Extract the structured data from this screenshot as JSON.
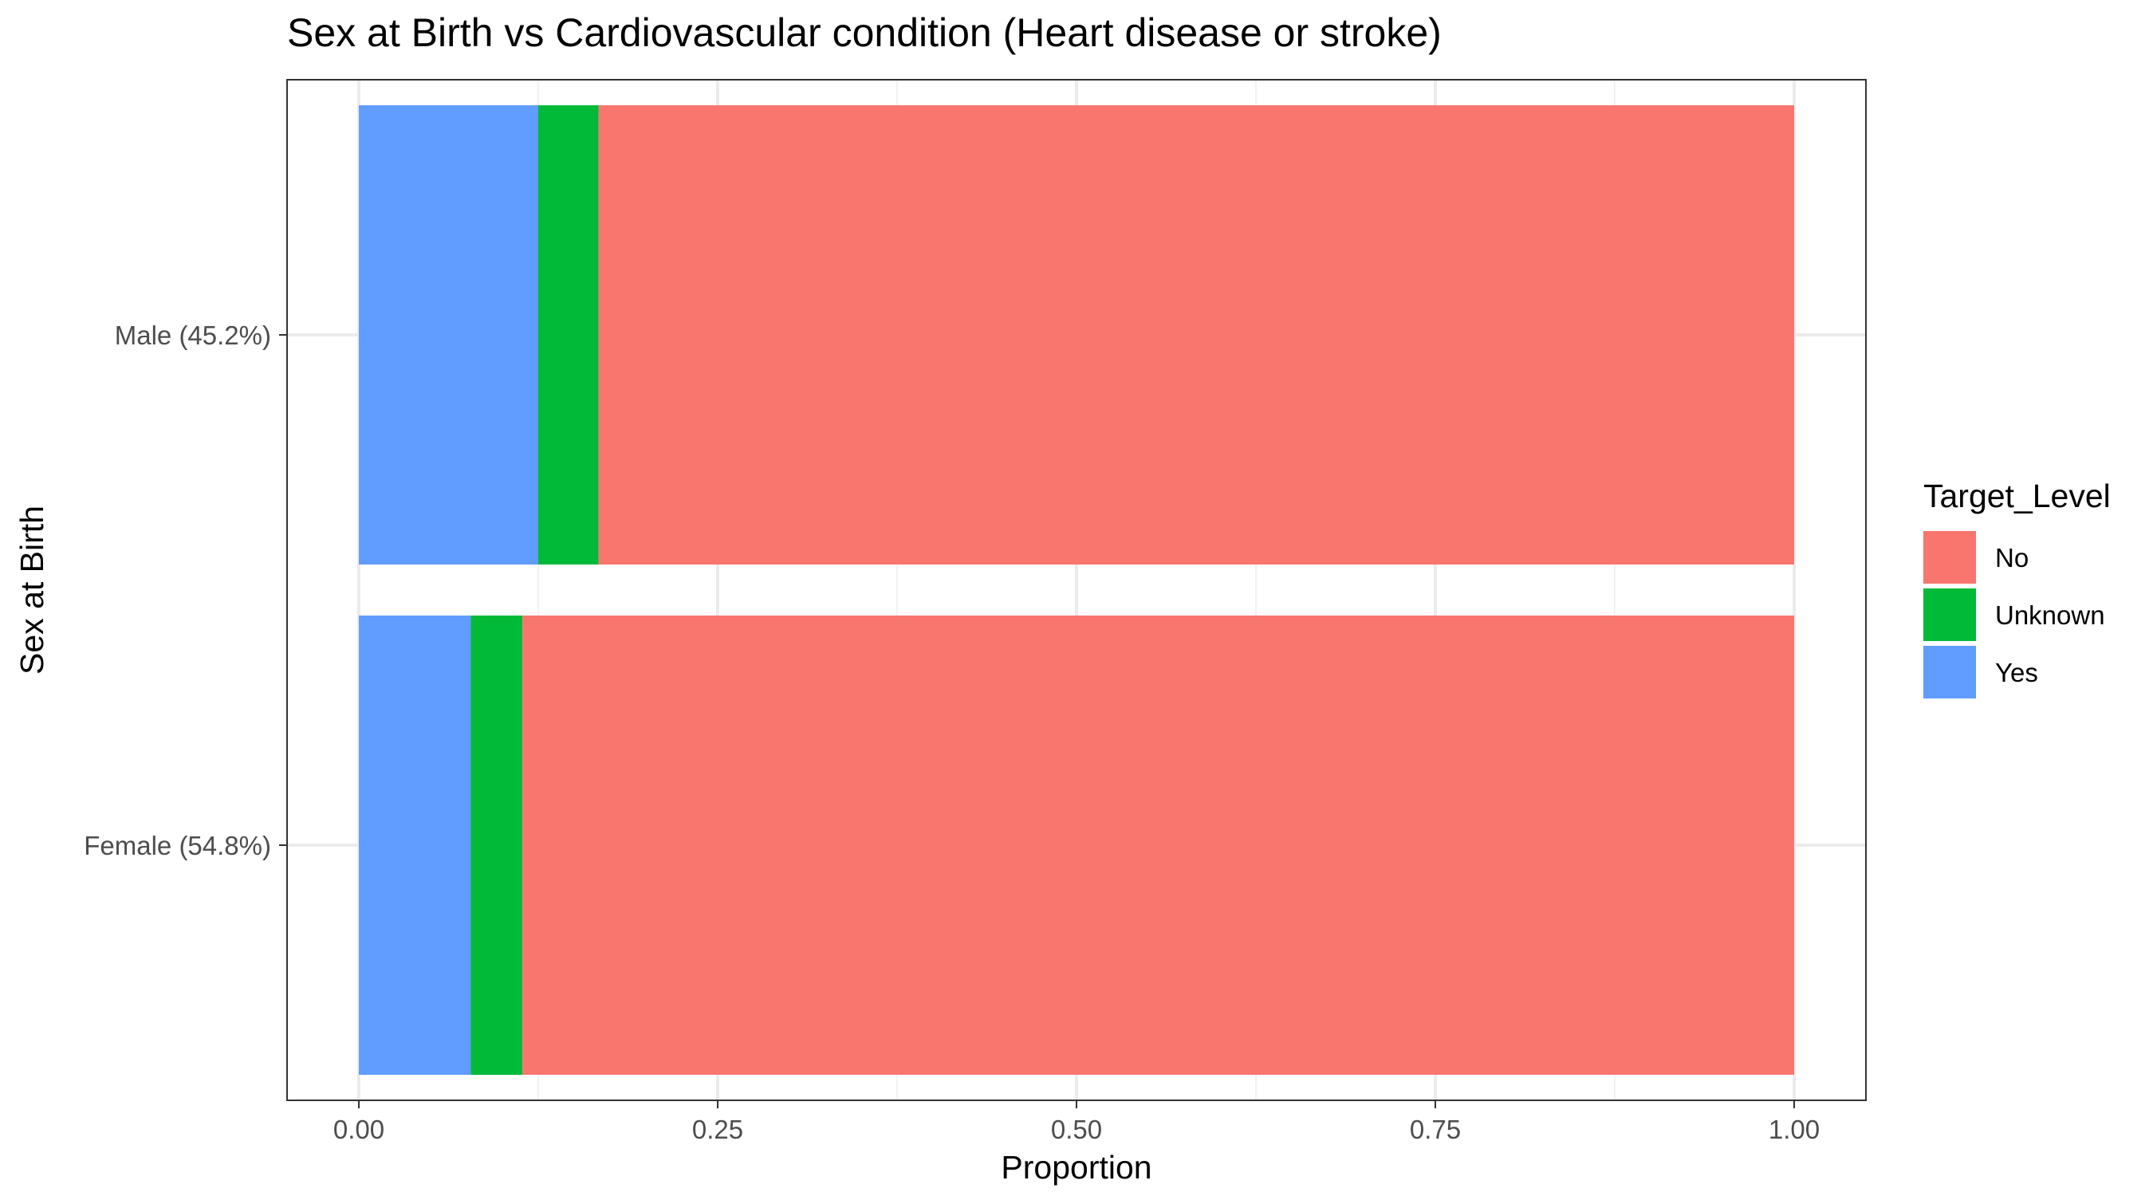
{
  "chart_data": {
    "type": "bar",
    "orientation": "horizontal",
    "stacked": true,
    "title": "Sex at Birth vs Cardiovascular condition (Heart disease or stroke)",
    "xlabel": "Proportion",
    "ylabel": "Sex at Birth",
    "xlim": [
      0,
      1
    ],
    "x_ticks": [
      "0.00",
      "0.25",
      "0.50",
      "0.75",
      "1.00"
    ],
    "x_tick_values": [
      0,
      0.25,
      0.5,
      0.75,
      1.0
    ],
    "grid": true,
    "legend_position": "right",
    "legend_title": "Target_Level",
    "categories": [
      "Male (45.2%)",
      "Female (54.8%)"
    ],
    "series": [
      {
        "name": "Yes",
        "color": "#619CFF",
        "values": [
          0.125,
          0.078
        ]
      },
      {
        "name": "Unknown",
        "color": "#00BA38",
        "values": [
          0.042,
          0.036
        ]
      },
      {
        "name": "No",
        "color": "#F8766D",
        "values": [
          0.833,
          0.886
        ]
      }
    ],
    "legend_order": [
      "No",
      "Unknown",
      "Yes"
    ]
  }
}
